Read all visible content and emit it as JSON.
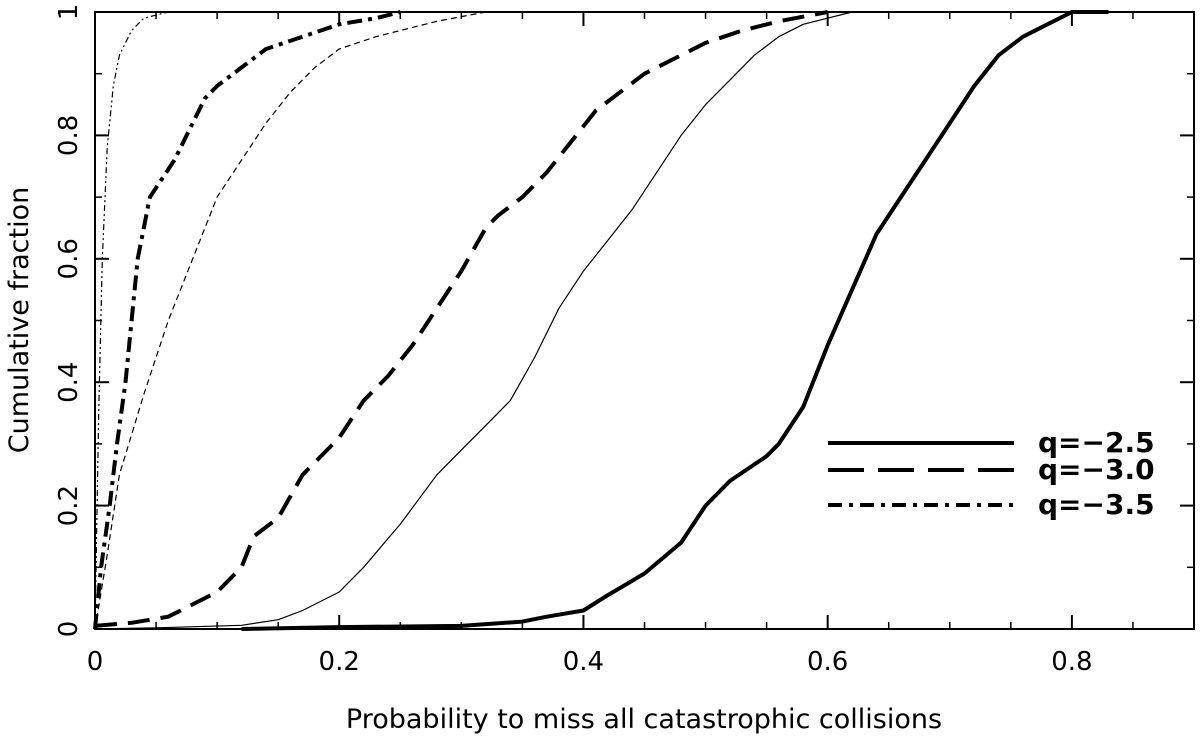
{
  "chart_data": {
    "type": "line",
    "title": "",
    "xlabel": "Probability to miss all catastrophic collisions",
    "ylabel": "Cumulative fraction",
    "xlim": [
      0,
      0.9
    ],
    "ylim": [
      0,
      1
    ],
    "x_ticks": [
      0,
      0.2,
      0.4,
      0.6,
      0.8
    ],
    "x_tick_labels": [
      "0",
      "0.2",
      "0.4",
      "0.6",
      "0.8"
    ],
    "y_ticks": [
      0,
      0.2,
      0.4,
      0.6,
      0.8,
      1
    ],
    "y_tick_labels": [
      "0",
      "0.2",
      "0.4",
      "0.6",
      "0.8",
      "1"
    ],
    "grid": false,
    "legend_position": "right",
    "series": [
      {
        "name": "q=−2.5",
        "style": "solid",
        "weight": "thick",
        "points": [
          [
            0.12,
            0.0
          ],
          [
            0.2,
            0.003
          ],
          [
            0.3,
            0.005
          ],
          [
            0.35,
            0.012
          ],
          [
            0.37,
            0.02
          ],
          [
            0.4,
            0.03
          ],
          [
            0.42,
            0.055
          ],
          [
            0.45,
            0.09
          ],
          [
            0.48,
            0.14
          ],
          [
            0.5,
            0.2
          ],
          [
            0.52,
            0.24
          ],
          [
            0.55,
            0.28
          ],
          [
            0.56,
            0.3
          ],
          [
            0.58,
            0.36
          ],
          [
            0.6,
            0.46
          ],
          [
            0.62,
            0.55
          ],
          [
            0.64,
            0.64
          ],
          [
            0.66,
            0.7
          ],
          [
            0.68,
            0.76
          ],
          [
            0.7,
            0.82
          ],
          [
            0.72,
            0.88
          ],
          [
            0.74,
            0.93
          ],
          [
            0.76,
            0.96
          ],
          [
            0.78,
            0.98
          ],
          [
            0.8,
            1.0
          ],
          [
            0.83,
            1.0
          ]
        ]
      },
      {
        "name": "q=−3.0",
        "style": "dashed",
        "weight": "thick",
        "points": [
          [
            0.0,
            0.005
          ],
          [
            0.03,
            0.01
          ],
          [
            0.06,
            0.02
          ],
          [
            0.1,
            0.06
          ],
          [
            0.12,
            0.1
          ],
          [
            0.13,
            0.15
          ],
          [
            0.15,
            0.18
          ],
          [
            0.17,
            0.25
          ],
          [
            0.2,
            0.31
          ],
          [
            0.22,
            0.37
          ],
          [
            0.24,
            0.41
          ],
          [
            0.26,
            0.46
          ],
          [
            0.28,
            0.52
          ],
          [
            0.3,
            0.58
          ],
          [
            0.32,
            0.65
          ],
          [
            0.33,
            0.67
          ],
          [
            0.35,
            0.7
          ],
          [
            0.37,
            0.74
          ],
          [
            0.39,
            0.79
          ],
          [
            0.41,
            0.84
          ],
          [
            0.43,
            0.87
          ],
          [
            0.45,
            0.9
          ],
          [
            0.48,
            0.93
          ],
          [
            0.5,
            0.95
          ],
          [
            0.53,
            0.97
          ],
          [
            0.56,
            0.985
          ],
          [
            0.6,
            1.0
          ]
        ]
      },
      {
        "name": "q=−3.5",
        "style": "dashdot",
        "weight": "thick",
        "points": [
          [
            0.0,
            0.0
          ],
          [
            0.005,
            0.1
          ],
          [
            0.012,
            0.2
          ],
          [
            0.018,
            0.3
          ],
          [
            0.025,
            0.4
          ],
          [
            0.03,
            0.5
          ],
          [
            0.035,
            0.6
          ],
          [
            0.045,
            0.7
          ],
          [
            0.065,
            0.76
          ],
          [
            0.08,
            0.82
          ],
          [
            0.09,
            0.86
          ],
          [
            0.1,
            0.88
          ],
          [
            0.12,
            0.91
          ],
          [
            0.14,
            0.94
          ],
          [
            0.17,
            0.96
          ],
          [
            0.2,
            0.98
          ],
          [
            0.23,
            0.99
          ],
          [
            0.25,
            1.0
          ]
        ]
      },
      {
        "name": "",
        "style": "solid",
        "weight": "thin",
        "points": [
          [
            0.0,
            0.0
          ],
          [
            0.05,
            0.002
          ],
          [
            0.12,
            0.006
          ],
          [
            0.15,
            0.015
          ],
          [
            0.17,
            0.03
          ],
          [
            0.2,
            0.06
          ],
          [
            0.22,
            0.1
          ],
          [
            0.25,
            0.17
          ],
          [
            0.28,
            0.25
          ],
          [
            0.3,
            0.29
          ],
          [
            0.32,
            0.33
          ],
          [
            0.34,
            0.37
          ],
          [
            0.36,
            0.44
          ],
          [
            0.38,
            0.52
          ],
          [
            0.4,
            0.58
          ],
          [
            0.42,
            0.63
          ],
          [
            0.44,
            0.68
          ],
          [
            0.46,
            0.74
          ],
          [
            0.48,
            0.8
          ],
          [
            0.5,
            0.85
          ],
          [
            0.52,
            0.89
          ],
          [
            0.54,
            0.93
          ],
          [
            0.56,
            0.96
          ],
          [
            0.58,
            0.98
          ],
          [
            0.62,
            1.0
          ]
        ]
      },
      {
        "name": "",
        "style": "dashed",
        "weight": "thin",
        "points": [
          [
            0.0,
            0.0
          ],
          [
            0.01,
            0.12
          ],
          [
            0.02,
            0.25
          ],
          [
            0.04,
            0.38
          ],
          [
            0.06,
            0.5
          ],
          [
            0.08,
            0.6
          ],
          [
            0.1,
            0.7
          ],
          [
            0.12,
            0.76
          ],
          [
            0.14,
            0.82
          ],
          [
            0.16,
            0.87
          ],
          [
            0.18,
            0.91
          ],
          [
            0.2,
            0.94
          ],
          [
            0.23,
            0.96
          ],
          [
            0.26,
            0.975
          ],
          [
            0.28,
            0.985
          ],
          [
            0.32,
            1.0
          ]
        ]
      },
      {
        "name": "",
        "style": "dashdotdot",
        "weight": "thin",
        "points": [
          [
            0.0,
            0.0
          ],
          [
            0.003,
            0.35
          ],
          [
            0.006,
            0.6
          ],
          [
            0.01,
            0.78
          ],
          [
            0.015,
            0.88
          ],
          [
            0.02,
            0.93
          ],
          [
            0.03,
            0.97
          ],
          [
            0.04,
            0.99
          ],
          [
            0.06,
            1.0
          ]
        ]
      }
    ],
    "legend": [
      {
        "label": "q=−2.5",
        "style": "solid"
      },
      {
        "label": "q=−3.0",
        "style": "dashed"
      },
      {
        "label": "q=−3.5",
        "style": "dashdot"
      }
    ]
  }
}
